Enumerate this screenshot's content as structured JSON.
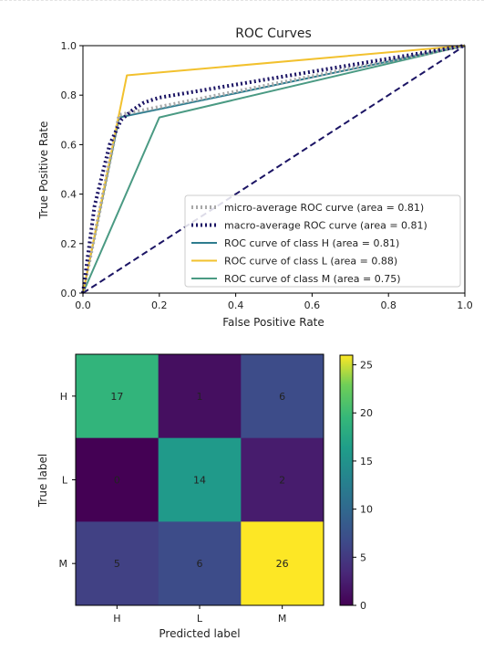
{
  "chart_data": [
    {
      "type": "line",
      "title": "ROC Curves",
      "xlabel": "False Positive Rate",
      "ylabel": "True Positive Rate",
      "xlim": [
        0.0,
        1.0
      ],
      "ylim": [
        0.0,
        1.0
      ],
      "xticks": [
        "0.0",
        "0.2",
        "0.4",
        "0.6",
        "0.8",
        "1.0"
      ],
      "yticks": [
        "0.0",
        "0.2",
        "0.4",
        "0.6",
        "0.8",
        "1.0"
      ],
      "grid": false,
      "legend_position": "lower-right",
      "series": [
        {
          "name": "micro-average ROC curve (area = 0.81)",
          "color": "#a9a9a9",
          "style": "dotted",
          "x": [
            0.0,
            0.095,
            1.0
          ],
          "y": [
            0.0,
            0.72,
            1.0
          ]
        },
        {
          "name": "macro-average ROC curve (area = 0.81)",
          "color": "#1b1464",
          "style": "dotted",
          "x": [
            0.0,
            0.03,
            0.07,
            0.1,
            0.13,
            0.16,
            0.2,
            1.0
          ],
          "y": [
            0.0,
            0.35,
            0.6,
            0.7,
            0.74,
            0.77,
            0.79,
            1.0
          ]
        },
        {
          "name": "ROC curve of class H (area = 0.81)",
          "color": "#2e7c8e",
          "style": "solid",
          "x": [
            0.0,
            0.095,
            1.0
          ],
          "y": [
            0.0,
            0.71,
            1.0
          ]
        },
        {
          "name": "ROC curve of class L (area = 0.88)",
          "color": "#f2c12e",
          "style": "solid",
          "x": [
            0.0,
            0.115,
            1.0
          ],
          "y": [
            0.0,
            0.88,
            1.0
          ]
        },
        {
          "name": "ROC curve of class M (area = 0.75)",
          "color": "#4a9a83",
          "style": "solid",
          "x": [
            0.0,
            0.2,
            1.0
          ],
          "y": [
            0.0,
            0.71,
            1.0
          ]
        },
        {
          "name": "",
          "color": "#1b1464",
          "style": "dashed",
          "x": [
            0.0,
            1.0
          ],
          "y": [
            0.0,
            1.0
          ]
        }
      ]
    },
    {
      "type": "heatmap",
      "xlabel": "Predicted label",
      "ylabel": "True label",
      "x_categories": [
        "H",
        "L",
        "M"
      ],
      "y_categories": [
        "H",
        "L",
        "M"
      ],
      "values": [
        [
          17,
          1,
          6
        ],
        [
          0,
          14,
          2
        ],
        [
          5,
          6,
          26
        ]
      ],
      "colormap": "viridis",
      "colorbar_range": [
        0,
        26
      ],
      "colorbar_ticks": [
        "0",
        "5",
        "10",
        "15",
        "20",
        "25"
      ]
    }
  ]
}
